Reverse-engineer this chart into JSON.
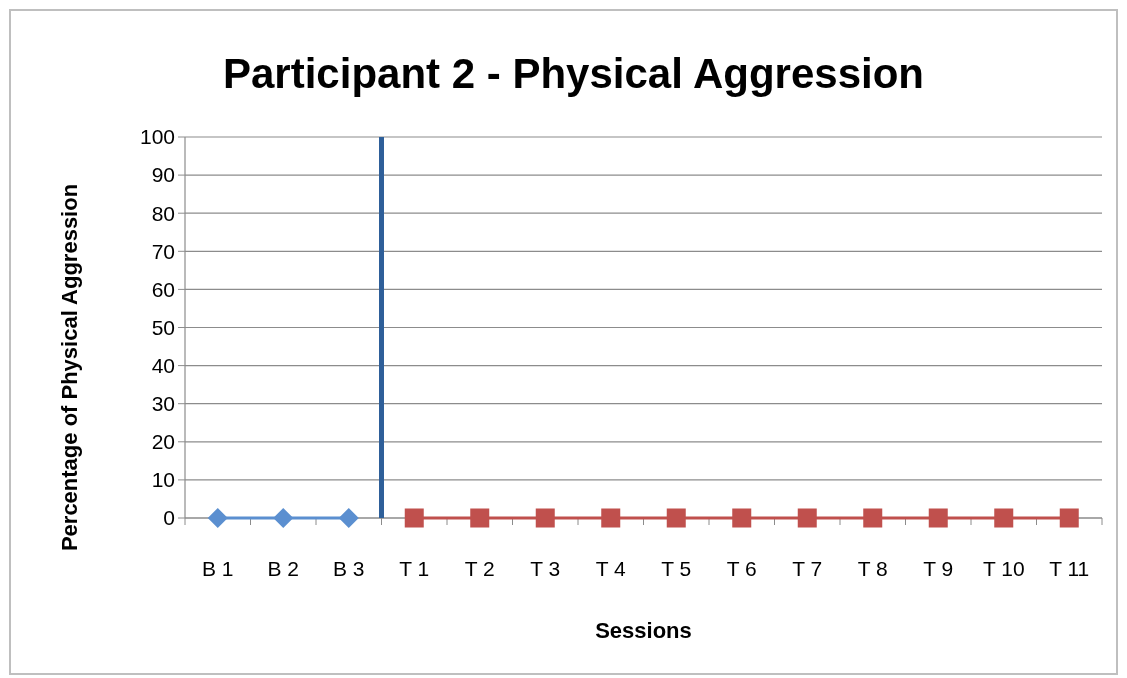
{
  "chart_data": {
    "type": "line",
    "title": "Participant 2 - Physical Aggression",
    "xlabel": "Sessions",
    "ylabel": "Percentage of Physical Aggression",
    "categories": [
      "B 1",
      "B 2",
      "B 3",
      "T 1",
      "T 2",
      "T 3",
      "T 4",
      "T 5",
      "T 6",
      "T 7",
      "T 8",
      "T 9",
      "T 10",
      "T 11"
    ],
    "series": [
      {
        "color": "#5b8fd0",
        "marker": "diamond",
        "values": [
          0,
          0,
          0,
          null,
          null,
          null,
          null,
          null,
          null,
          null,
          null,
          null,
          null,
          null
        ]
      },
      {
        "color": "#c0504d",
        "marker": "square",
        "values": [
          null,
          null,
          null,
          0,
          0,
          0,
          0,
          0,
          0,
          0,
          0,
          0,
          0,
          0
        ]
      }
    ],
    "ylim": [
      0,
      100
    ],
    "yticks": [
      0,
      10,
      20,
      30,
      40,
      50,
      60,
      70,
      80,
      90,
      100
    ],
    "grid": "y",
    "ref_lines": [
      {
        "axis": "x",
        "value": "B 3",
        "color": "#2e5f99"
      }
    ]
  }
}
